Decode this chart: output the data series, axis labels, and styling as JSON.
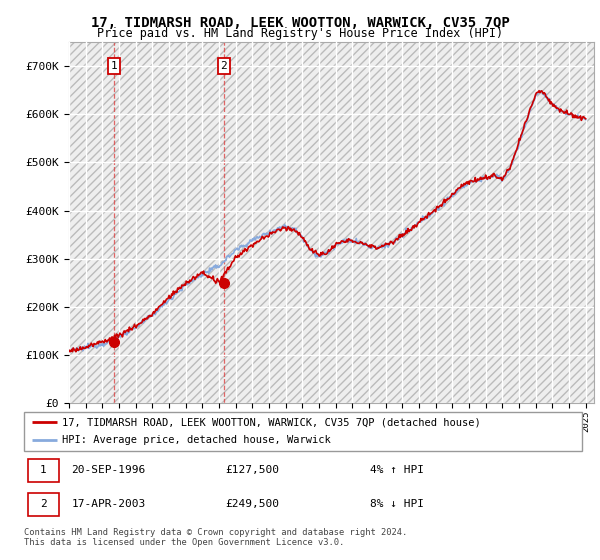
{
  "title": "17, TIDMARSH ROAD, LEEK WOOTTON, WARWICK, CV35 7QP",
  "subtitle": "Price paid vs. HM Land Registry's House Price Index (HPI)",
  "title_fontsize": 10,
  "subtitle_fontsize": 8.5,
  "hpi_color": "#88aadd",
  "price_color": "#cc0000",
  "marker_color": "#cc0000",
  "purchase1_year": 1996.72,
  "purchase1_price": 127500,
  "purchase2_year": 2003.29,
  "purchase2_price": 249500,
  "legend_line1": "17, TIDMARSH ROAD, LEEK WOOTTON, WARWICK, CV35 7QP (detached house)",
  "legend_line2": "HPI: Average price, detached house, Warwick",
  "note1_date": "20-SEP-1996",
  "note1_price": "£127,500",
  "note1_hpi": "4% ↑ HPI",
  "note2_date": "17-APR-2003",
  "note2_price": "£249,500",
  "note2_hpi": "8% ↓ HPI",
  "copyright": "Contains HM Land Registry data © Crown copyright and database right 2024.\nThis data is licensed under the Open Government Licence v3.0.",
  "ylim": [
    0,
    750000
  ],
  "yticks": [
    0,
    100000,
    200000,
    300000,
    400000,
    500000,
    600000,
    700000
  ],
  "ytick_labels": [
    "£0",
    "£100K",
    "£200K",
    "£300K",
    "£400K",
    "£500K",
    "£600K",
    "£700K"
  ],
  "hpi_knots_x": [
    1994,
    1995,
    1996,
    1997,
    1998,
    1999,
    2000,
    2001,
    2002,
    2003,
    2004,
    2005,
    2006,
    2007,
    2007.5,
    2008,
    2008.5,
    2009,
    2009.5,
    2010,
    2010.5,
    2011,
    2011.5,
    2012,
    2012.5,
    2013,
    2013.5,
    2014,
    2014.5,
    2015,
    2015.5,
    2016,
    2016.5,
    2017,
    2017.5,
    2018,
    2018.5,
    2019,
    2019.5,
    2020,
    2020.5,
    2021,
    2021.5,
    2022,
    2022.3,
    2022.6,
    2023,
    2023.5,
    2024,
    2024.5,
    2025
  ],
  "hpi_knots_y": [
    108000,
    115000,
    123000,
    138000,
    158000,
    182000,
    215000,
    245000,
    268000,
    285000,
    318000,
    338000,
    355000,
    368000,
    362000,
    345000,
    318000,
    305000,
    312000,
    328000,
    335000,
    338000,
    333000,
    325000,
    322000,
    328000,
    335000,
    348000,
    360000,
    375000,
    388000,
    400000,
    415000,
    432000,
    448000,
    458000,
    462000,
    468000,
    472000,
    465000,
    490000,
    540000,
    590000,
    640000,
    648000,
    638000,
    618000,
    608000,
    600000,
    595000,
    590000
  ],
  "price_offset_knots_x": [
    1994,
    1995,
    1996,
    1997,
    1998,
    1999,
    2000,
    2001,
    2002,
    2003,
    2004,
    2005,
    2006,
    2007,
    2008,
    2009,
    2010,
    2011,
    2012,
    2013,
    2014,
    2015,
    2016,
    2017,
    2018,
    2019,
    2020,
    2021,
    2022,
    2023,
    2024,
    2025
  ],
  "price_offset_knots_y": [
    0,
    1000,
    4500,
    3000,
    2000,
    3000,
    5000,
    4000,
    3000,
    -35000,
    -15000,
    -10000,
    -5000,
    -3000,
    0,
    2000,
    1000,
    0,
    1000,
    2000,
    1000,
    0,
    2000,
    3000,
    2000,
    1000,
    0,
    2000,
    3000,
    2000,
    1000,
    0
  ]
}
